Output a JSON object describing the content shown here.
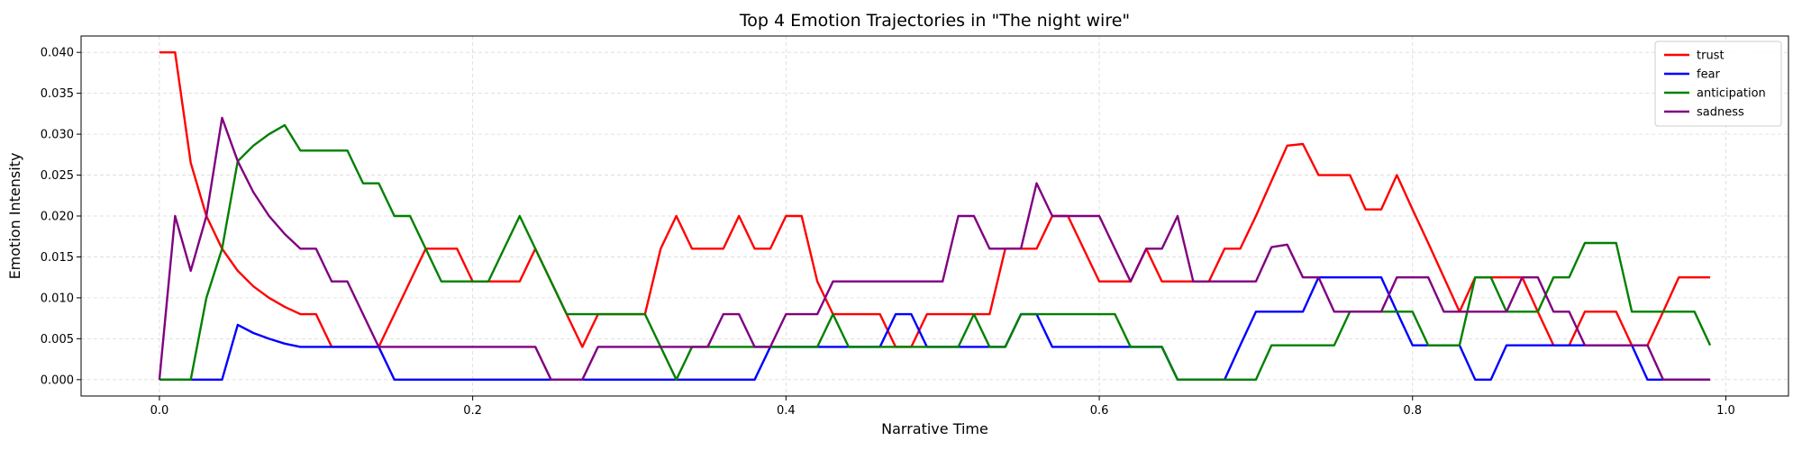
{
  "chart_data": {
    "type": "line",
    "title": "Top 4 Emotion Trajectories in \"The night wire\"",
    "xlabel": "Narrative Time",
    "ylabel": "Emotion Intensity",
    "xlim": [
      -0.05,
      1.04
    ],
    "ylim": [
      -0.002,
      0.042
    ],
    "xticks": [
      0.0,
      0.2,
      0.4,
      0.6,
      0.8,
      1.0
    ],
    "xtick_labels": [
      "0.0",
      "0.2",
      "0.4",
      "0.6",
      "0.8",
      "1.0"
    ],
    "yticks": [
      0.0,
      0.005,
      0.01,
      0.015,
      0.02,
      0.025,
      0.03,
      0.035,
      0.04
    ],
    "ytick_labels": [
      "0.000",
      "0.005",
      "0.010",
      "0.015",
      "0.020",
      "0.025",
      "0.030",
      "0.035",
      "0.040"
    ],
    "grid": true,
    "legend_position": "top-right",
    "x": [
      0.0,
      0.01,
      0.02,
      0.03,
      0.04,
      0.05,
      0.06,
      0.07,
      0.08,
      0.09,
      0.1,
      0.11,
      0.12,
      0.13,
      0.14,
      0.15,
      0.16,
      0.17,
      0.18,
      0.19,
      0.2,
      0.21,
      0.22,
      0.23,
      0.24,
      0.25,
      0.26,
      0.27,
      0.28,
      0.29,
      0.3,
      0.31,
      0.32,
      0.33,
      0.34,
      0.35,
      0.36,
      0.37,
      0.38,
      0.39,
      0.4,
      0.41,
      0.42,
      0.43,
      0.44,
      0.45,
      0.46,
      0.47,
      0.48,
      0.49,
      0.5,
      0.51,
      0.52,
      0.53,
      0.54,
      0.55,
      0.56,
      0.57,
      0.58,
      0.59,
      0.6,
      0.61,
      0.62,
      0.63,
      0.64,
      0.65,
      0.66,
      0.67,
      0.68,
      0.69,
      0.7,
      0.71,
      0.72,
      0.73,
      0.74,
      0.75,
      0.76,
      0.77,
      0.78,
      0.79,
      0.8,
      0.81,
      0.82,
      0.83,
      0.84,
      0.85,
      0.86,
      0.87,
      0.88,
      0.89,
      0.9,
      0.91,
      0.92,
      0.93,
      0.94,
      0.95,
      0.96,
      0.97,
      0.98,
      0.99
    ],
    "series": [
      {
        "name": "trust",
        "color": "#ff0000",
        "values": [
          0.04,
          0.04,
          0.0265,
          0.02,
          0.016,
          0.0133,
          0.0114,
          0.01,
          0.0089,
          0.008,
          0.008,
          0.004,
          0.004,
          0.004,
          0.004,
          0.008,
          0.012,
          0.016,
          0.016,
          0.016,
          0.012,
          0.012,
          0.012,
          0.012,
          0.016,
          0.012,
          0.008,
          0.004,
          0.008,
          0.008,
          0.008,
          0.008,
          0.016,
          0.02,
          0.016,
          0.016,
          0.016,
          0.02,
          0.016,
          0.016,
          0.02,
          0.02,
          0.012,
          0.008,
          0.008,
          0.008,
          0.008,
          0.004,
          0.004,
          0.008,
          0.008,
          0.008,
          0.008,
          0.008,
          0.016,
          0.016,
          0.016,
          0.02,
          0.02,
          0.016,
          0.012,
          0.012,
          0.012,
          0.016,
          0.012,
          0.012,
          0.012,
          0.012,
          0.016,
          0.016,
          0.02,
          0.0243,
          0.0286,
          0.0288,
          0.025,
          0.025,
          0.025,
          0.0208,
          0.0208,
          0.025,
          0.0208,
          0.0167,
          0.0125,
          0.0083,
          0.0125,
          0.0125,
          0.0125,
          0.0125,
          0.0083,
          0.0042,
          0.0042,
          0.0083,
          0.0083,
          0.0083,
          0.0042,
          0.0042,
          0.0083,
          0.0125,
          0.0125,
          0.0125
        ]
      },
      {
        "name": "fear",
        "color": "#0000ff",
        "values": [
          0,
          0,
          0,
          0,
          0,
          0.0067,
          0.0057,
          0.005,
          0.0044,
          0.004,
          0.004,
          0.004,
          0.004,
          0.004,
          0.004,
          0,
          0,
          0,
          0,
          0,
          0,
          0,
          0,
          0,
          0,
          0,
          0,
          0,
          0,
          0,
          0,
          0,
          0,
          0,
          0,
          0,
          0,
          0,
          0,
          0.004,
          0.004,
          0.004,
          0.004,
          0.004,
          0.004,
          0.004,
          0.004,
          0.008,
          0.008,
          0.004,
          0.004,
          0.004,
          0.004,
          0.004,
          0.004,
          0.008,
          0.008,
          0.004,
          0.004,
          0.004,
          0.004,
          0.004,
          0.004,
          0.004,
          0.004,
          0,
          0,
          0,
          0,
          0.0042,
          0.0083,
          0.0083,
          0.0083,
          0.0083,
          0.0125,
          0.0125,
          0.0125,
          0.0125,
          0.0125,
          0.0083,
          0.0042,
          0.0042,
          0.0042,
          0.0042,
          0,
          0,
          0.0042,
          0.0042,
          0.0042,
          0.0042,
          0.0042,
          0.0042,
          0.0042,
          0.0042,
          0.0042,
          0,
          0,
          0,
          0,
          0
        ]
      },
      {
        "name": "anticipation",
        "color": "#008000",
        "values": [
          0,
          0,
          0,
          0.01,
          0.016,
          0.0267,
          0.0286,
          0.03,
          0.0311,
          0.028,
          0.028,
          0.028,
          0.028,
          0.024,
          0.024,
          0.02,
          0.02,
          0.016,
          0.012,
          0.012,
          0.012,
          0.012,
          0.016,
          0.02,
          0.016,
          0.012,
          0.008,
          0.008,
          0.008,
          0.008,
          0.008,
          0.008,
          0.004,
          0,
          0.004,
          0.004,
          0.004,
          0.004,
          0.004,
          0.004,
          0.004,
          0.004,
          0.004,
          0.008,
          0.004,
          0.004,
          0.004,
          0.004,
          0.004,
          0.004,
          0.004,
          0.004,
          0.008,
          0.004,
          0.004,
          0.008,
          0.008,
          0.008,
          0.008,
          0.008,
          0.008,
          0.008,
          0.004,
          0.004,
          0.004,
          0,
          0,
          0,
          0,
          0,
          0,
          0.0042,
          0.0042,
          0.0042,
          0.0042,
          0.0042,
          0.0083,
          0.0083,
          0.0083,
          0.0083,
          0.0083,
          0.0042,
          0.0042,
          0.0042,
          0.0125,
          0.0125,
          0.0083,
          0.0083,
          0.0083,
          0.0125,
          0.0125,
          0.0167,
          0.0167,
          0.0167,
          0.0083,
          0.0083,
          0.0083,
          0.0083,
          0.0083,
          0.0042
        ]
      },
      {
        "name": "sadness",
        "color": "#800080",
        "values": [
          0,
          0.02,
          0.0133,
          0.02,
          0.032,
          0.0267,
          0.0229,
          0.02,
          0.0178,
          0.016,
          0.016,
          0.012,
          0.012,
          0.008,
          0.004,
          0.004,
          0.004,
          0.004,
          0.004,
          0.004,
          0.004,
          0.004,
          0.004,
          0.004,
          0.004,
          0,
          0,
          0,
          0.004,
          0.004,
          0.004,
          0.004,
          0.004,
          0.004,
          0.004,
          0.004,
          0.008,
          0.008,
          0.004,
          0.004,
          0.008,
          0.008,
          0.008,
          0.012,
          0.012,
          0.012,
          0.012,
          0.012,
          0.012,
          0.012,
          0.012,
          0.02,
          0.02,
          0.016,
          0.016,
          0.016,
          0.024,
          0.02,
          0.02,
          0.02,
          0.02,
          0.016,
          0.012,
          0.016,
          0.016,
          0.02,
          0.012,
          0.012,
          0.012,
          0.012,
          0.012,
          0.0162,
          0.0165,
          0.0125,
          0.0125,
          0.0083,
          0.0083,
          0.0083,
          0.0083,
          0.0125,
          0.0125,
          0.0125,
          0.0083,
          0.0083,
          0.0083,
          0.0083,
          0.0083,
          0.0125,
          0.0125,
          0.0083,
          0.0083,
          0.0042,
          0.0042,
          0.0042,
          0.0042,
          0.0042,
          0,
          0,
          0,
          0
        ]
      }
    ]
  }
}
